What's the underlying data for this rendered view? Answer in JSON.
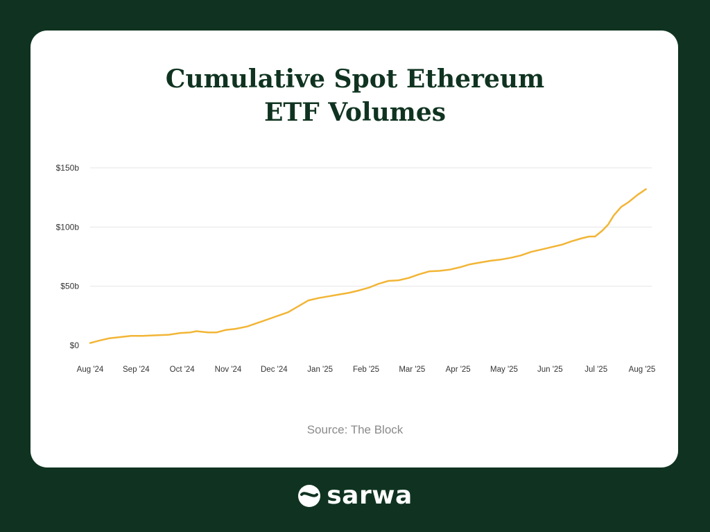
{
  "title_line1": "Cumulative Spot Ethereum",
  "title_line2": "ETF Volumes",
  "source": "Source: The Block",
  "brand": {
    "name": "sarwa",
    "icon": "sarwa-logo-icon"
  },
  "colors": {
    "background": "#0f3320",
    "card": "#ffffff",
    "line": "#f2b535",
    "title": "#0f3320",
    "grid": "#e4e4e4"
  },
  "chart_data": {
    "type": "line",
    "title": "Cumulative Spot Ethereum ETF Volumes",
    "xlabel": "",
    "ylabel": "",
    "grid": true,
    "yticks": [
      {
        "value": 0,
        "label": "$0"
      },
      {
        "value": 50,
        "label": "$50b"
      },
      {
        "value": 100,
        "label": "$100b"
      },
      {
        "value": 150,
        "label": "$150b"
      }
    ],
    "ylim": [
      0,
      150
    ],
    "xticks": [
      "Aug '24",
      "Sep '24",
      "Oct '24",
      "Nov '24",
      "Dec '24",
      "Jan '25",
      "Feb '25",
      "Mar '25",
      "Apr '25",
      "May '25",
      "Jun '25",
      "Jul '25",
      "Aug '25"
    ],
    "xlim": [
      "2024-07-23",
      "2025-08-13"
    ],
    "series": [
      {
        "values": [
          [
            "2024-07-23",
            2
          ],
          [
            "2024-07-29",
            4
          ],
          [
            "2024-08-05",
            6
          ],
          [
            "2024-08-12",
            7
          ],
          [
            "2024-08-20",
            8
          ],
          [
            "2024-08-28",
            8
          ],
          [
            "2024-09-05",
            8.5
          ],
          [
            "2024-09-15",
            9
          ],
          [
            "2024-09-23",
            10.5
          ],
          [
            "2024-09-30",
            11
          ],
          [
            "2024-10-04",
            12
          ],
          [
            "2024-10-12",
            11
          ],
          [
            "2024-10-18",
            11
          ],
          [
            "2024-10-24",
            13
          ],
          [
            "2024-10-31",
            14
          ],
          [
            "2024-11-08",
            16
          ],
          [
            "2024-11-15",
            19
          ],
          [
            "2024-11-22",
            22
          ],
          [
            "2024-11-29",
            25
          ],
          [
            "2024-12-06",
            28
          ],
          [
            "2024-12-13",
            33
          ],
          [
            "2024-12-20",
            38
          ],
          [
            "2024-12-27",
            40
          ],
          [
            "2025-01-03",
            41.5
          ],
          [
            "2025-01-10",
            43
          ],
          [
            "2025-01-17",
            44.5
          ],
          [
            "2025-01-24",
            46.5
          ],
          [
            "2025-01-31",
            49
          ],
          [
            "2025-02-06",
            52
          ],
          [
            "2025-02-13",
            54.5
          ],
          [
            "2025-02-20",
            55
          ],
          [
            "2025-02-27",
            57
          ],
          [
            "2025-03-06",
            60
          ],
          [
            "2025-03-13",
            62.5
          ],
          [
            "2025-03-20",
            63
          ],
          [
            "2025-03-27",
            64
          ],
          [
            "2025-04-03",
            66
          ],
          [
            "2025-04-10",
            68.5
          ],
          [
            "2025-04-17",
            70
          ],
          [
            "2025-04-24",
            71.5
          ],
          [
            "2025-05-01",
            72.5
          ],
          [
            "2025-05-08",
            74
          ],
          [
            "2025-05-15",
            76
          ],
          [
            "2025-05-22",
            79
          ],
          [
            "2025-05-29",
            81
          ],
          [
            "2025-06-05",
            83
          ],
          [
            "2025-06-12",
            85
          ],
          [
            "2025-06-19",
            88
          ],
          [
            "2025-06-26",
            90.5
          ],
          [
            "2025-07-01",
            92
          ],
          [
            "2025-07-05",
            92
          ],
          [
            "2025-07-10",
            97
          ],
          [
            "2025-07-14",
            102
          ],
          [
            "2025-07-18",
            110
          ],
          [
            "2025-07-23",
            117
          ],
          [
            "2025-07-28",
            121
          ],
          [
            "2025-08-03",
            127
          ],
          [
            "2025-08-09",
            132
          ]
        ]
      }
    ]
  }
}
